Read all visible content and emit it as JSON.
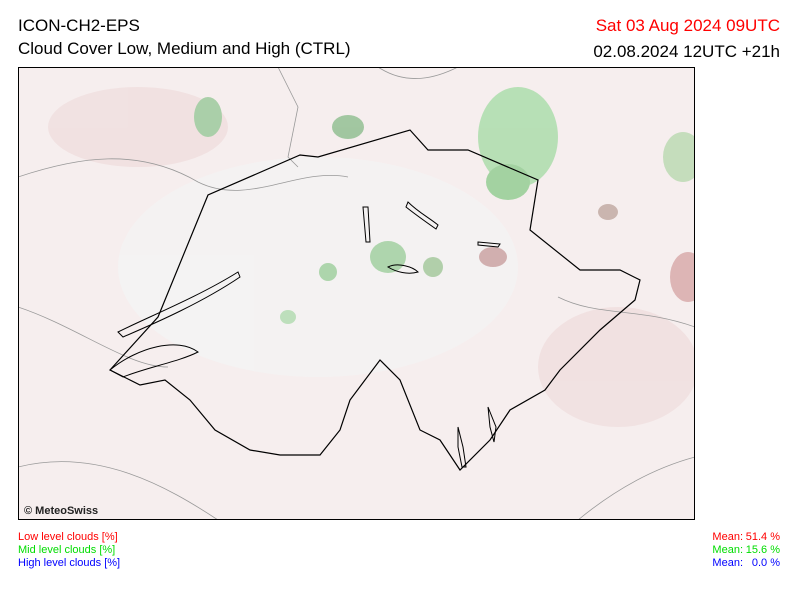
{
  "header": {
    "model": "ICON-CH2-EPS",
    "title": "Cloud Cover Low, Medium and High (CTRL)",
    "valid_time": "Sat 03 Aug 2024 09UTC",
    "run": "02.08.2024 12UTC +21h"
  },
  "map": {
    "credit": "© MeteoSwiss"
  },
  "legend": [
    {
      "label": "Low level clouds [%]",
      "color": "#ff0000",
      "mean_label": "Mean:",
      "mean": "51.4 %"
    },
    {
      "label": "Mid level clouds [%]",
      "color": "#00dd00",
      "mean_label": "Mean:",
      "mean": "15.6 %"
    },
    {
      "label": "High level clouds [%]",
      "color": "#0000ff",
      "mean_label": "Mean:",
      "mean": "0.0 %"
    }
  ]
}
